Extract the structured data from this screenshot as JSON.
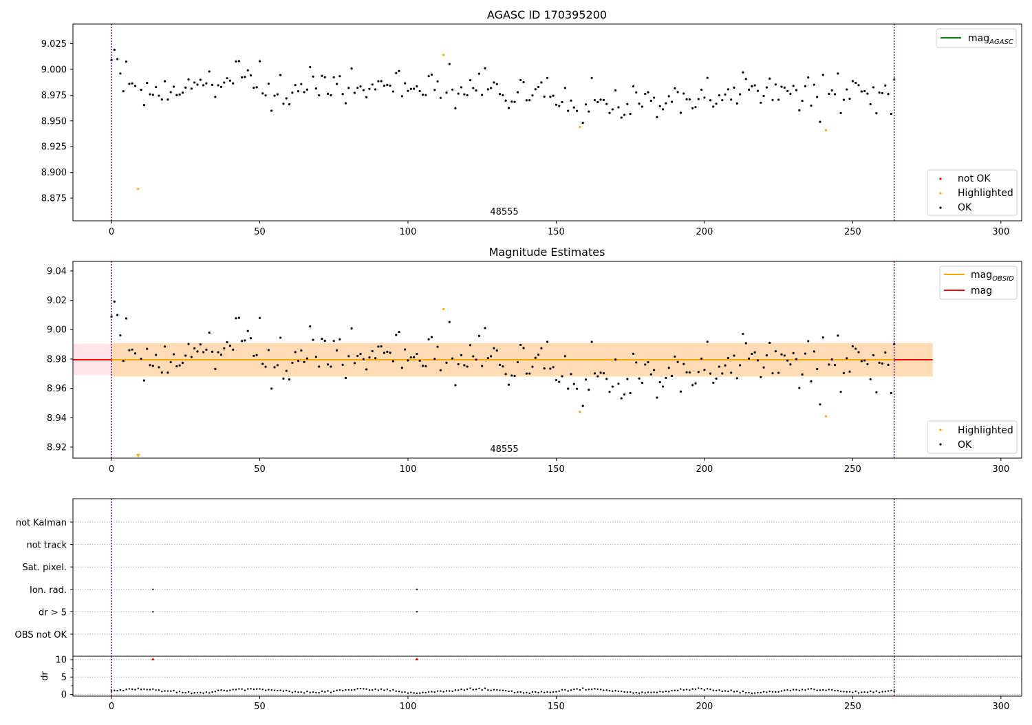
{
  "colors": {
    "ok": "#000000",
    "highlighted": "#ffa500",
    "not_ok": "#ff0000",
    "agasc_line": "#008000",
    "obsid_line": "#ffa500",
    "mag_line": "#ff0000",
    "obs_boundary": "#800080",
    "band_outer": "#ffc0cb",
    "band_inner": "#ffd8a8"
  },
  "chart_data": [
    {
      "type": "scatter",
      "title": "AGASC ID 170395200",
      "xlim": [
        -13,
        307
      ],
      "ylim": [
        8.853,
        9.044
      ],
      "xticks": [
        "0",
        "50",
        "100",
        "150",
        "200",
        "250",
        "300"
      ],
      "yticks": [
        "8.875",
        "8.900",
        "8.925",
        "8.950",
        "8.975",
        "9.000",
        "9.025"
      ],
      "legend_lines": [
        {
          "label": "mag",
          "sub": "AGASC",
          "color_key": "agasc_line"
        }
      ],
      "legend_points": [
        "not OK",
        "Highlighted",
        "OK"
      ],
      "obsid_label": "48555",
      "obs_boundaries": [
        0,
        264
      ],
      "highlighted": [
        {
          "x": 9,
          "y": 8.884
        },
        {
          "x": 112,
          "y": 9.014
        },
        {
          "x": 158,
          "y": 8.944
        },
        {
          "x": 241,
          "y": 8.941
        }
      ]
    },
    {
      "type": "scatter",
      "title": "Magnitude Estimates",
      "xlim": [
        -13,
        307
      ],
      "ylim": [
        8.9125,
        9.0465
      ],
      "xticks": [
        "0",
        "50",
        "100",
        "150",
        "200",
        "250",
        "300"
      ],
      "yticks": [
        "8.92",
        "8.94",
        "8.96",
        "8.98",
        "9.00",
        "9.02",
        "9.04"
      ],
      "legend_lines": [
        {
          "label": "mag",
          "sub": "OBSID",
          "color_key": "obsid_line"
        },
        {
          "label": "mag",
          "sub": "",
          "color_key": "mag_line"
        }
      ],
      "legend_points": [
        "Highlighted",
        "OK"
      ],
      "obsid_label": "48555",
      "obs_boundaries": [
        0,
        264
      ],
      "mag": 8.9795,
      "mag_obsid": 8.9795,
      "band_outer": {
        "x": [
          -13,
          277
        ],
        "y": [
          8.969,
          8.9905
        ]
      },
      "band_inner": {
        "x": [
          0,
          277
        ],
        "y": [
          8.968,
          8.991
        ]
      },
      "highlighted": [
        {
          "x": 9,
          "y": 8.913
        },
        {
          "x": 112,
          "y": 9.014
        },
        {
          "x": 158,
          "y": 8.944
        },
        {
          "x": 241,
          "y": 8.941
        }
      ]
    },
    {
      "type": "scatter",
      "title": "",
      "xlim": [
        -13,
        307
      ],
      "categories": [
        "not Kalman",
        "not track",
        "Sat. pixel.",
        "Ion. rad.",
        "dr > 5",
        "OBS not OK"
      ],
      "flag_points": [
        {
          "flag": "Ion. rad.",
          "x": [
            14,
            103
          ]
        },
        {
          "flag": "dr > 5",
          "x": [
            14,
            103
          ]
        }
      ],
      "obs_boundaries": [
        0,
        264
      ]
    },
    {
      "type": "scatter",
      "title": "",
      "ylabel": "dr",
      "xlim": [
        -13,
        307
      ],
      "ylim": [
        -0.5,
        11
      ],
      "xticks": [
        "0",
        "50",
        "100",
        "150",
        "200",
        "250",
        "300"
      ],
      "yticks": [
        "0",
        "5",
        "10"
      ],
      "clipped_above": [
        14,
        103
      ],
      "obs_boundaries": [
        0,
        264
      ]
    }
  ]
}
